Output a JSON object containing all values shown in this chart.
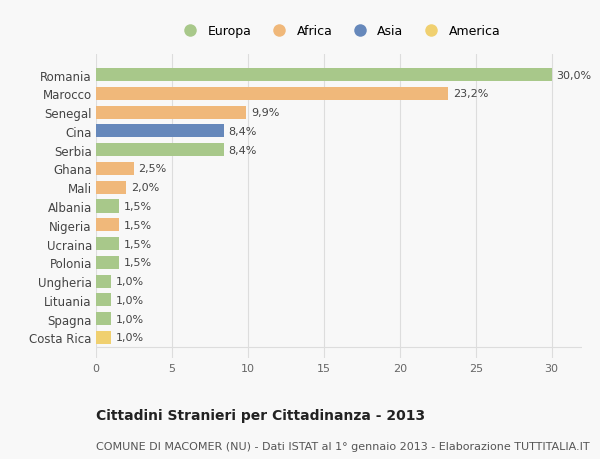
{
  "countries": [
    "Romania",
    "Marocco",
    "Senegal",
    "Cina",
    "Serbia",
    "Ghana",
    "Mali",
    "Albania",
    "Nigeria",
    "Ucraina",
    "Polonia",
    "Ungheria",
    "Lituania",
    "Spagna",
    "Costa Rica"
  ],
  "values": [
    30.0,
    23.2,
    9.9,
    8.4,
    8.4,
    2.5,
    2.0,
    1.5,
    1.5,
    1.5,
    1.5,
    1.0,
    1.0,
    1.0,
    1.0
  ],
  "labels": [
    "30,0%",
    "23,2%",
    "9,9%",
    "8,4%",
    "8,4%",
    "2,5%",
    "2,0%",
    "1,5%",
    "1,5%",
    "1,5%",
    "1,5%",
    "1,0%",
    "1,0%",
    "1,0%",
    "1,0%"
  ],
  "continents": [
    "Europa",
    "Africa",
    "Africa",
    "Asia",
    "Europa",
    "Africa",
    "Africa",
    "Europa",
    "Africa",
    "Europa",
    "Europa",
    "Europa",
    "Europa",
    "Europa",
    "America"
  ],
  "colors": {
    "Europa": "#a8c88a",
    "Africa": "#f0b87a",
    "Asia": "#6688bb",
    "America": "#f0d070"
  },
  "legend_order": [
    "Europa",
    "Africa",
    "Asia",
    "America"
  ],
  "xlim": [
    0,
    32
  ],
  "xticks": [
    0,
    5,
    10,
    15,
    20,
    25,
    30
  ],
  "title": "Cittadini Stranieri per Cittadinanza - 2013",
  "subtitle": "COMUNE DI MACOMER (NU) - Dati ISTAT al 1° gennaio 2013 - Elaborazione TUTTITALIA.IT",
  "bg_color": "#f8f8f8",
  "bar_height": 0.7,
  "grid_color": "#dddddd",
  "label_fontsize": 8,
  "ytick_fontsize": 8.5,
  "xtick_fontsize": 8,
  "title_fontsize": 10,
  "subtitle_fontsize": 8
}
